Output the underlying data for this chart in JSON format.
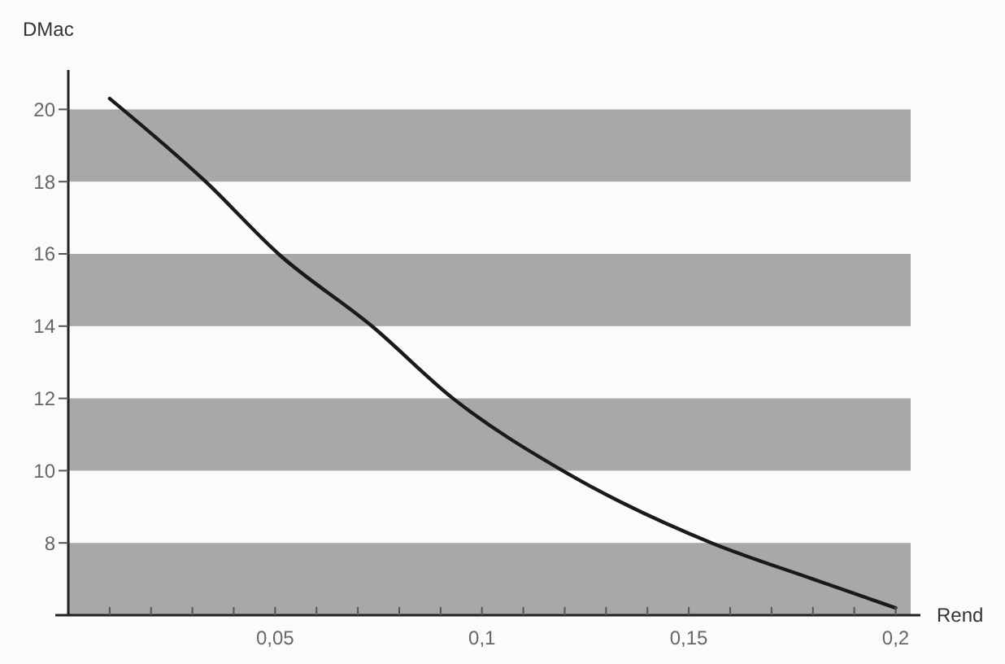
{
  "chart_data": {
    "type": "line",
    "xlabel": "Rend",
    "ylabel": "DMac",
    "x": [
      0.01,
      0.0332,
      0.0508,
      0.0734,
      0.093,
      0.1195,
      0.1555,
      0.18,
      0.2
    ],
    "series": [
      {
        "color": "#1a1a1a",
        "values": [
          20.3,
          18,
          16,
          14,
          12,
          10,
          8,
          7,
          6.2
        ]
      }
    ],
    "xlim": [
      0,
      0.206
    ],
    "ylim": [
      6,
      21
    ],
    "xticks": [
      {
        "value": 0.01,
        "label": null
      },
      {
        "value": 0.02,
        "label": null
      },
      {
        "value": 0.03,
        "label": null
      },
      {
        "value": 0.04,
        "label": null
      },
      {
        "value": 0.05,
        "label": "0,05"
      },
      {
        "value": 0.06,
        "label": null
      },
      {
        "value": 0.07,
        "label": null
      },
      {
        "value": 0.08,
        "label": null
      },
      {
        "value": 0.09,
        "label": null
      },
      {
        "value": 0.1,
        "label": "0,1"
      },
      {
        "value": 0.11,
        "label": null
      },
      {
        "value": 0.12,
        "label": null
      },
      {
        "value": 0.13,
        "label": null
      },
      {
        "value": 0.14,
        "label": null
      },
      {
        "value": 0.15,
        "label": "0,15"
      },
      {
        "value": 0.16,
        "label": null
      },
      {
        "value": 0.17,
        "label": null
      },
      {
        "value": 0.18,
        "label": null
      },
      {
        "value": 0.19,
        "label": null
      },
      {
        "value": 0.2,
        "label": "0,2"
      }
    ],
    "yticks": [
      8,
      10,
      12,
      14,
      16,
      18,
      20
    ],
    "bands": [
      {
        "axis": "y",
        "from": 6,
        "to": 8,
        "color": "#a8a8a8"
      },
      {
        "axis": "y",
        "from": 10,
        "to": 12,
        "color": "#a8a8a8"
      },
      {
        "axis": "y",
        "from": 14,
        "to": 16,
        "color": "#a8a8a8"
      },
      {
        "axis": "y",
        "from": 18,
        "to": 20,
        "color": "#a8a8a8"
      }
    ],
    "grid": false,
    "marker": "none",
    "line_style": "solid"
  }
}
